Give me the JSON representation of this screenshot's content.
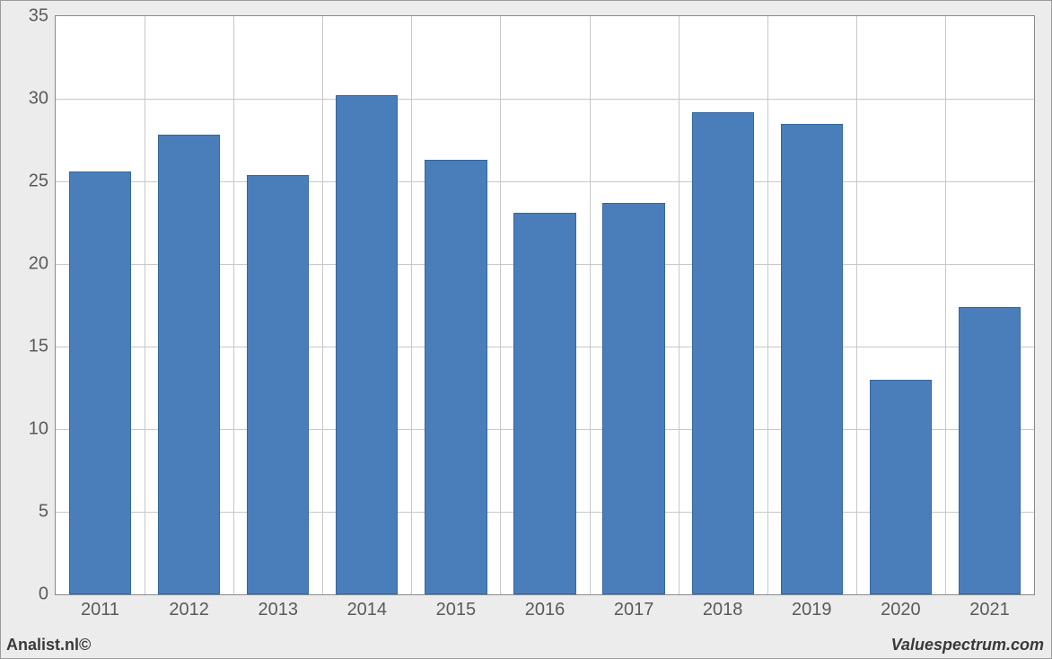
{
  "chart": {
    "type": "bar",
    "categories": [
      "2011",
      "2012",
      "2013",
      "2014",
      "2015",
      "2016",
      "2017",
      "2018",
      "2019",
      "2020",
      "2021"
    ],
    "values": [
      25.6,
      27.8,
      25.4,
      30.2,
      26.3,
      23.1,
      23.7,
      29.2,
      28.5,
      13.0,
      17.4
    ],
    "bar_color": "#4a7ebb",
    "bar_border_color": "#34679c",
    "ylim": [
      0,
      35
    ],
    "yticks": [
      0,
      5,
      10,
      15,
      20,
      25,
      30,
      35
    ],
    "background_color": "#ececec",
    "plot_bg": "#ffffff",
    "grid_color": "#c8c8c8",
    "frame_color": "#8a8a8a",
    "tick_font_size": 20,
    "tick_color": "#5a5a5a",
    "bar_width_ratio": 0.7
  },
  "footer": {
    "left": "Analist.nl©",
    "right": "Valuespectrum.com"
  }
}
